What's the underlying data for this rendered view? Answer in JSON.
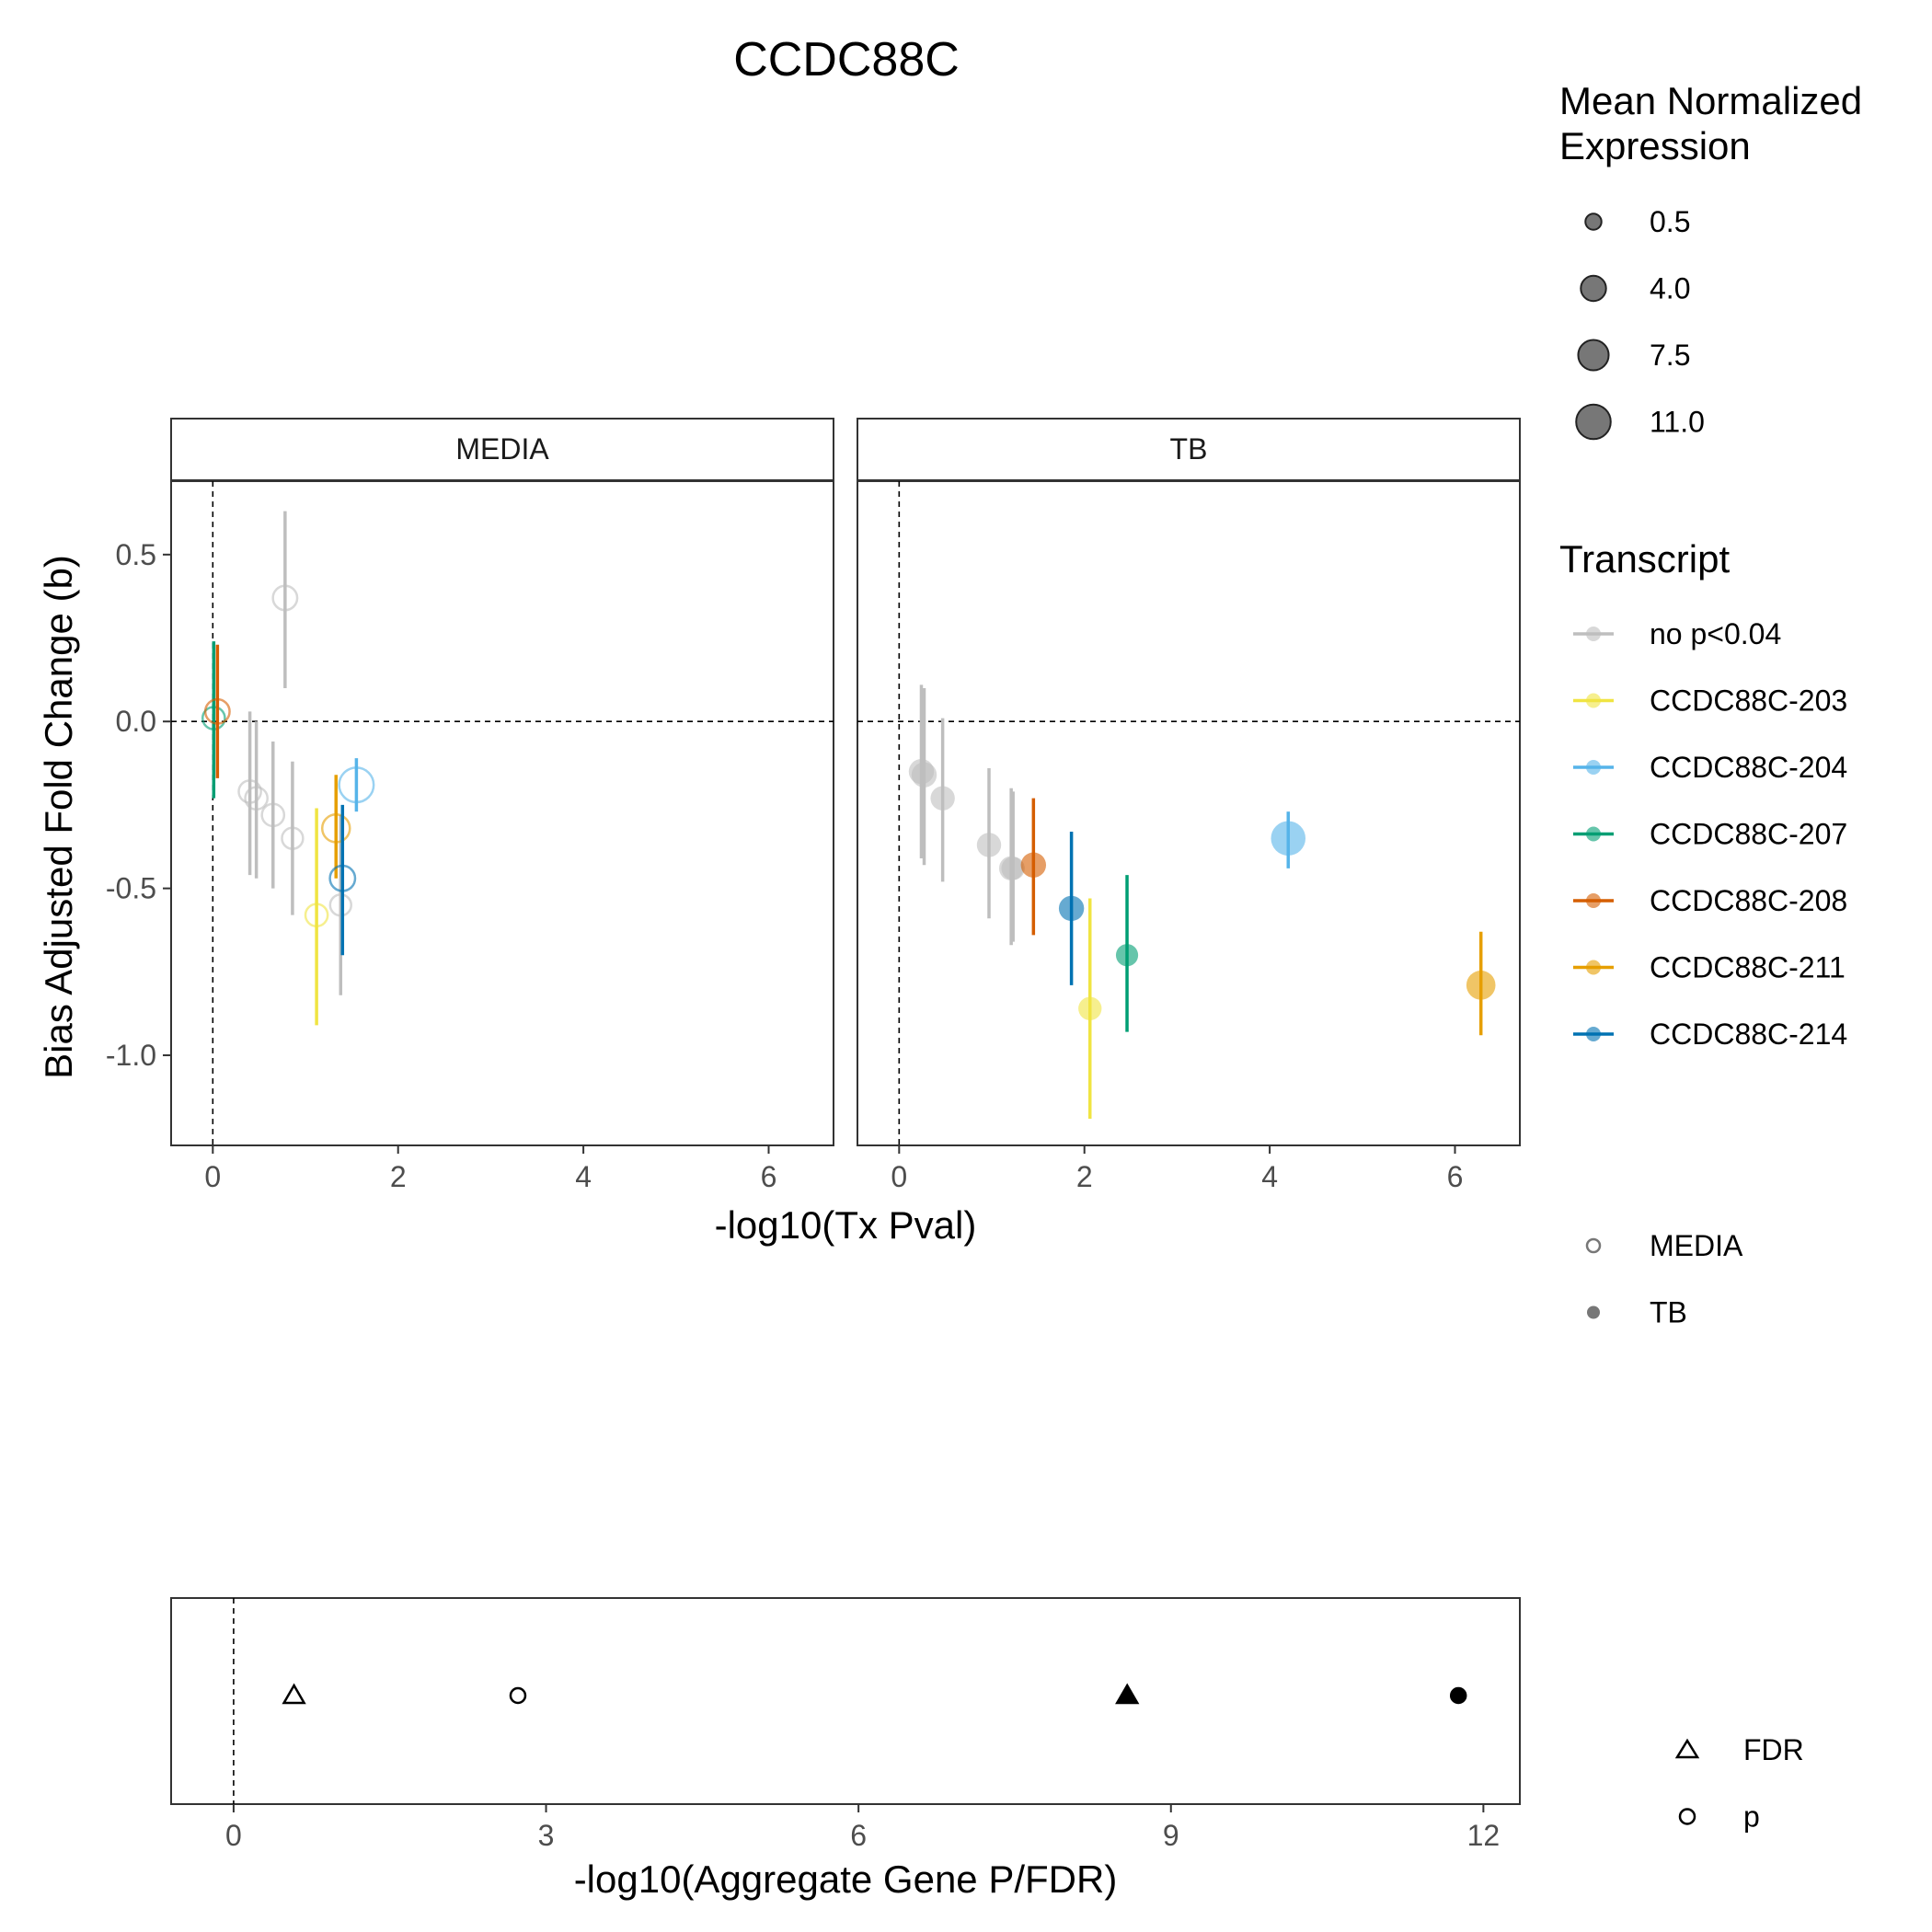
{
  "title": "CCDC88C",
  "panels": [
    "MEDIA",
    "TB"
  ],
  "x_axis_label": "-log10(Tx Pval)",
  "y_axis_label": "Bias Adjusted Fold Change (b)",
  "bottom_x_axis_label": "-log10(Aggregate Gene P/FDR)",
  "legend": {
    "size_title_line1": "Mean Normalized",
    "size_title_line2": "Expression",
    "size_entries": [
      {
        "label": "0.5",
        "value": 0.5
      },
      {
        "label": "4.0",
        "value": 4.0
      },
      {
        "label": "7.5",
        "value": 7.5
      },
      {
        "label": "11.0",
        "value": 11.0
      }
    ],
    "transcript_title": "Transcript",
    "transcripts": [
      {
        "label": "no p<0.04",
        "color": "#BEBEBE"
      },
      {
        "label": "CCDC88C-203",
        "color": "#F0E442"
      },
      {
        "label": "CCDC88C-204",
        "color": "#56B4E9"
      },
      {
        "label": "CCDC88C-207",
        "color": "#009E73"
      },
      {
        "label": "CCDC88C-208",
        "color": "#D55E00"
      },
      {
        "label": "CCDC88C-211",
        "color": "#E69F00"
      },
      {
        "label": "CCDC88C-214",
        "color": "#0072B2"
      }
    ],
    "condition_entries": [
      {
        "label": "MEDIA",
        "shape": "open-circle"
      },
      {
        "label": "TB",
        "shape": "filled-circle"
      }
    ],
    "stat_entries": [
      {
        "label": "FDR",
        "shape": "open-triangle"
      },
      {
        "label": "p",
        "shape": "open-circle"
      }
    ]
  },
  "chart_data": [
    {
      "type": "scatter",
      "panel": "MEDIA",
      "xlim": [
        -0.45,
        6.7
      ],
      "ylim": [
        -1.27,
        0.72
      ],
      "x_ticks": [
        0,
        2,
        4,
        6
      ],
      "y_ticks": [
        0.5,
        0.0,
        -0.5,
        -1.0
      ],
      "y_tick_labels": [
        "0.5",
        "0.0",
        "-0.5",
        "-1.0"
      ],
      "reference_lines": {
        "x": 0,
        "y": 0
      },
      "points": [
        {
          "transcript": "no p<0.04",
          "x": 0.78,
          "y": 0.37,
          "ymin": 0.1,
          "ymax": 0.63,
          "expr": 3.5
        },
        {
          "transcript": "no p<0.04",
          "x": 0.4,
          "y": -0.21,
          "ymin": -0.46,
          "ymax": 0.03,
          "expr": 2.5
        },
        {
          "transcript": "no p<0.04",
          "x": 0.47,
          "y": -0.23,
          "ymin": -0.47,
          "ymax": 0.0,
          "expr": 2.5
        },
        {
          "transcript": "no p<0.04",
          "x": 0.65,
          "y": -0.28,
          "ymin": -0.5,
          "ymax": -0.06,
          "expr": 2.5
        },
        {
          "transcript": "no p<0.04",
          "x": 0.86,
          "y": -0.35,
          "ymin": -0.58,
          "ymax": -0.12,
          "expr": 2.0
        },
        {
          "transcript": "no p<0.04",
          "x": 1.38,
          "y": -0.55,
          "ymin": -0.82,
          "ymax": -0.28,
          "expr": 2.0
        },
        {
          "transcript": "CCDC88C-203",
          "x": 1.12,
          "y": -0.58,
          "ymin": -0.91,
          "ymax": -0.26,
          "expr": 2.5
        },
        {
          "transcript": "CCDC88C-204",
          "x": 1.55,
          "y": -0.19,
          "ymin": -0.27,
          "ymax": -0.11,
          "expr": 11.0
        },
        {
          "transcript": "CCDC88C-207",
          "x": 0.01,
          "y": 0.01,
          "ymin": -0.23,
          "ymax": 0.24,
          "expr": 2.5
        },
        {
          "transcript": "CCDC88C-208",
          "x": 0.05,
          "y": 0.03,
          "ymin": -0.17,
          "ymax": 0.23,
          "expr": 3.5
        },
        {
          "transcript": "CCDC88C-211",
          "x": 1.33,
          "y": -0.32,
          "ymin": -0.47,
          "ymax": -0.16,
          "expr": 5.5
        },
        {
          "transcript": "CCDC88C-214",
          "x": 1.4,
          "y": -0.47,
          "ymin": -0.7,
          "ymax": -0.25,
          "expr": 4.0
        }
      ]
    },
    {
      "type": "scatter",
      "panel": "TB",
      "xlim": [
        -0.45,
        6.7
      ],
      "ylim": [
        -1.27,
        0.72
      ],
      "x_ticks": [
        0,
        2,
        4,
        6
      ],
      "reference_lines": {
        "x": 0,
        "y": 0
      },
      "points": [
        {
          "transcript": "no p<0.04",
          "x": 0.24,
          "y": -0.15,
          "ymin": -0.41,
          "ymax": 0.11,
          "expr": 4.0
        },
        {
          "transcript": "no p<0.04",
          "x": 0.27,
          "y": -0.16,
          "ymin": -0.43,
          "ymax": 0.1,
          "expr": 4.0
        },
        {
          "transcript": "no p<0.04",
          "x": 0.47,
          "y": -0.23,
          "ymin": -0.48,
          "ymax": 0.01,
          "expr": 3.5
        },
        {
          "transcript": "no p<0.04",
          "x": 0.97,
          "y": -0.37,
          "ymin": -0.59,
          "ymax": -0.14,
          "expr": 3.5
        },
        {
          "transcript": "no p<0.04",
          "x": 1.21,
          "y": -0.44,
          "ymin": -0.67,
          "ymax": -0.2,
          "expr": 3.5
        },
        {
          "transcript": "no p<0.04",
          "x": 1.23,
          "y": -0.44,
          "ymin": -0.66,
          "ymax": -0.21,
          "expr": 3.0
        },
        {
          "transcript": "CCDC88C-203",
          "x": 2.06,
          "y": -0.86,
          "ymin": -1.19,
          "ymax": -0.53,
          "expr": 3.0
        },
        {
          "transcript": "CCDC88C-204",
          "x": 4.2,
          "y": -0.35,
          "ymin": -0.44,
          "ymax": -0.27,
          "expr": 11.0
        },
        {
          "transcript": "CCDC88C-207",
          "x": 2.46,
          "y": -0.7,
          "ymin": -0.93,
          "ymax": -0.46,
          "expr": 2.5
        },
        {
          "transcript": "CCDC88C-208",
          "x": 1.45,
          "y": -0.43,
          "ymin": -0.64,
          "ymax": -0.23,
          "expr": 4.0
        },
        {
          "transcript": "CCDC88C-211",
          "x": 6.28,
          "y": -0.79,
          "ymin": -0.94,
          "ymax": -0.63,
          "expr": 6.5
        },
        {
          "transcript": "CCDC88C-214",
          "x": 1.86,
          "y": -0.56,
          "ymin": -0.79,
          "ymax": -0.33,
          "expr": 4.0
        }
      ]
    },
    {
      "type": "scatter",
      "panel": "aggregate",
      "xlim": [
        -0.6,
        12.35
      ],
      "x_ticks": [
        0,
        3,
        6,
        9,
        12
      ],
      "reference_lines": {
        "x": 0
      },
      "points": [
        {
          "stat": "FDR",
          "condition": "MEDIA",
          "x": 0.58
        },
        {
          "stat": "p",
          "condition": "MEDIA",
          "x": 2.73
        },
        {
          "stat": "FDR",
          "condition": "TB",
          "x": 8.58
        },
        {
          "stat": "p",
          "condition": "TB",
          "x": 11.76
        }
      ]
    }
  ]
}
